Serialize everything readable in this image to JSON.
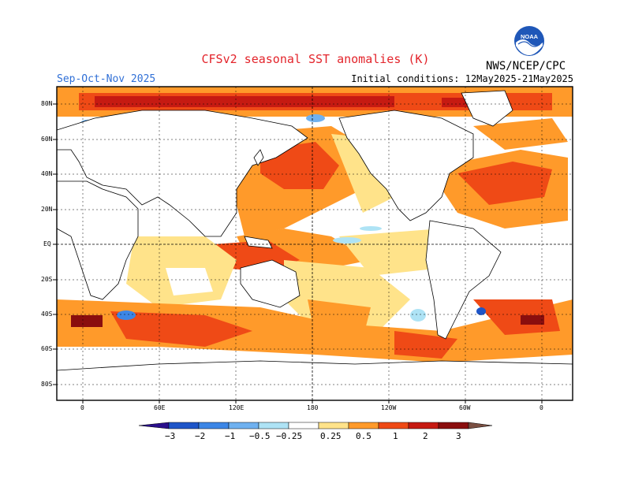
{
  "header": {
    "title": "CFSv2 seasonal SST anomalies (K)",
    "season": "Sep-Oct-Nov 2025",
    "initial_conditions": "Initial conditions: 12May2025-21May2025",
    "credit": "NWS/NCEP/CPC",
    "logo_text": "NOAA"
  },
  "map": {
    "lat_labels": [
      "80N",
      "60N",
      "40N",
      "20N",
      "EQ",
      "20S",
      "40S",
      "60S",
      "80S"
    ],
    "lon_labels": [
      "0",
      "60E",
      "120E",
      "180",
      "120W",
      "60W",
      "0"
    ]
  },
  "colorbar": {
    "labels": [
      "−3",
      "−2",
      "−1",
      "−0.5",
      "−0.25",
      "0.25",
      "0.5",
      "1",
      "2",
      "3"
    ],
    "colors": [
      "#2a0f8c",
      "#1e55c8",
      "#3c86e6",
      "#6fb1f0",
      "#aee3f5",
      "#ffffff",
      "#ffe38a",
      "#ff9a2a",
      "#ef4a16",
      "#c61a12",
      "#8a0e0e",
      "#7a4f42"
    ]
  }
}
